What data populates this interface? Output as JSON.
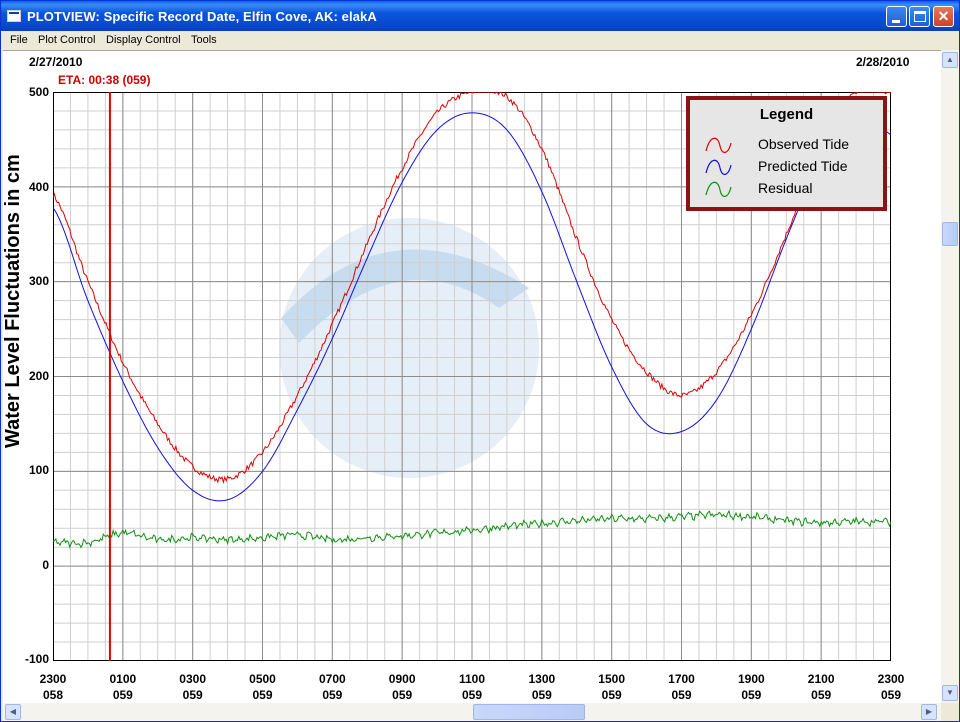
{
  "window": {
    "title": "PLOTVIEW: Specific Record Date, Elfin Cove, AK: elakA",
    "minimize_label": "",
    "maximize_label": "",
    "close_label": "✕"
  },
  "menu": [
    {
      "label": "File"
    },
    {
      "label": "Plot Control"
    },
    {
      "label": "Display Control"
    },
    {
      "label": "Tools"
    }
  ],
  "plot": {
    "start_date": "2/27/2010",
    "end_date": "2/28/2010",
    "eta_label": "ETA: 00:38 (059)",
    "y_axis_title": "Water Level Fluctuations in cm",
    "watermark_icon": "noaa-logo-watermark",
    "colors": {
      "observed": "#e00000",
      "predicted": "#1010e0",
      "residual": "#109010",
      "eta_marker": "#e00000",
      "legend_border": "#8a1414"
    }
  },
  "legend": {
    "title": "Legend",
    "entries": [
      {
        "label": "Observed Tide",
        "color": "#e00000"
      },
      {
        "label": "Predicted Tide",
        "color": "#1010e0"
      },
      {
        "label": "Residual",
        "color": "#109010"
      }
    ]
  },
  "chart_data": {
    "type": "line",
    "title": "",
    "ylabel": "Water Level Fluctuations in cm",
    "xlabel": "",
    "ylim": [
      -100,
      500
    ],
    "xlim_hours": [
      0,
      24
    ],
    "y_ticks": [
      "500",
      "400",
      "300",
      "200",
      "100",
      "0",
      "-100"
    ],
    "x_ticks": [
      {
        "time": "2300",
        "day": "058"
      },
      {
        "time": "0100",
        "day": "059"
      },
      {
        "time": "0300",
        "day": "059"
      },
      {
        "time": "0500",
        "day": "059"
      },
      {
        "time": "0700",
        "day": "059"
      },
      {
        "time": "0900",
        "day": "059"
      },
      {
        "time": "1100",
        "day": "059"
      },
      {
        "time": "1300",
        "day": "059"
      },
      {
        "time": "1500",
        "day": "059"
      },
      {
        "time": "1700",
        "day": "059"
      },
      {
        "time": "1900",
        "day": "059"
      },
      {
        "time": "2100",
        "day": "059"
      },
      {
        "time": "2300",
        "day": "059"
      }
    ],
    "grid": true,
    "eta_marker_hour": 1.63,
    "x_hours": [
      0,
      1,
      2,
      3,
      4,
      5,
      6,
      7,
      8,
      9,
      10,
      11,
      12,
      13,
      14,
      15,
      16,
      17,
      18,
      19,
      20,
      21,
      22,
      23,
      24
    ],
    "series": [
      {
        "name": "Observed Tide",
        "color": "#e00000",
        "values": [
          392,
          300,
          215,
          150,
          105,
          92,
          120,
          180,
          255,
          340,
          420,
          478,
          500,
          495,
          440,
          345,
          260,
          205,
          180,
          205,
          265,
          350,
          440,
          500,
          500
        ]
      },
      {
        "name": "Predicted Tide",
        "color": "#1010e0",
        "values": [
          378,
          280,
          195,
          125,
          80,
          70,
          100,
          165,
          240,
          325,
          405,
          460,
          478,
          460,
          395,
          300,
          210,
          150,
          142,
          175,
          250,
          345,
          430,
          490,
          455
        ]
      },
      {
        "name": "Residual",
        "color": "#109010",
        "values": [
          25,
          25,
          35,
          28,
          30,
          28,
          30,
          33,
          28,
          30,
          32,
          35,
          38,
          42,
          45,
          48,
          50,
          50,
          52,
          54,
          52,
          48,
          46,
          47,
          47
        ]
      }
    ]
  }
}
